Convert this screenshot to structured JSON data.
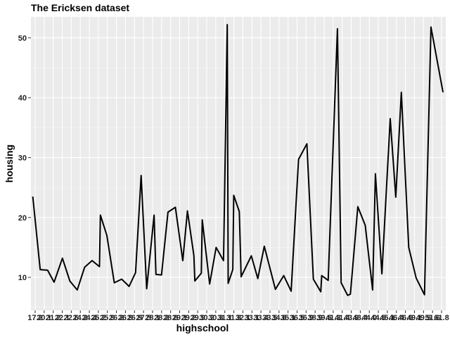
{
  "chart_data": {
    "type": "line",
    "title": "The Ericksen dataset",
    "xlabel": "highschool",
    "ylabel": "housing",
    "xlim": [
      17,
      61.8
    ],
    "ylim": [
      4.5,
      53.5
    ],
    "y_ticks": [
      10,
      20,
      30,
      40,
      50
    ],
    "x_tick_labels": [
      "17.2",
      "20.1",
      "21.2",
      "22.1",
      "22.6",
      "24.2",
      "24.4",
      "25.2",
      "25.9",
      "26.2",
      "26.9",
      "26.9",
      "27.5",
      "28.1",
      "28.2",
      "28.6",
      "29.1",
      "29.2",
      "29.9",
      "30.2",
      "30.3",
      "31.1",
      "31.3",
      "32.1",
      "33.1",
      "33.4",
      "33.5",
      "34.6",
      "35.1",
      "36.5",
      "36.9",
      "38.9",
      "39.5",
      "41.3",
      "41.4",
      "43.9",
      "43.4",
      "44.0",
      "44.5",
      "45.1",
      "46.4",
      "46.6",
      "49.1",
      "49.5",
      "51.6",
      "61.8"
    ],
    "series": [
      {
        "color": "#000000",
        "x": [
          17.2,
          18.0,
          18.8,
          19.5,
          20.4,
          21.2,
          22.0,
          22.8,
          23.6,
          24.4,
          24.5,
          25.2,
          26.0,
          26.8,
          27.6,
          28.3,
          28.9,
          29.5,
          30.3,
          30.5,
          31.1,
          31.8,
          32.6,
          33.4,
          33.9,
          34.6,
          34.7,
          35.4,
          35.5,
          36.3,
          37.0,
          37.8,
          38.2,
          38.3,
          38.8,
          38.9,
          39.5,
          39.7,
          40.8,
          41.5,
          42.2,
          43.4,
          44.3,
          45.1,
          45.9,
          46.8,
          47.5,
          48.3,
          48.4,
          49.1,
          50.1,
          50.5,
          51.2,
          51.5,
          52.3,
          53.1,
          53.9,
          54.2,
          54.9,
          55.8,
          56.4,
          57.0,
          57.8,
          58.6,
          59.5,
          60.2,
          61.5
        ],
        "y": [
          23.5,
          11.3,
          11.2,
          9.2,
          13.2,
          9.4,
          7.9,
          11.7,
          12.8,
          11.8,
          20.4,
          17.0,
          9.1,
          9.7,
          8.5,
          10.8,
          27.0,
          8.1,
          20.4,
          10.5,
          10.4,
          20.9,
          21.7,
          12.8,
          21.1,
          13.6,
          9.4,
          10.7,
          19.6,
          8.9,
          15.0,
          12.8,
          52.2,
          9.0,
          11.3,
          23.7,
          21.0,
          10.1,
          13.6,
          9.8,
          15.2,
          8.0,
          10.3,
          7.7,
          29.7,
          32.3,
          9.7,
          7.6,
          10.3,
          9.5,
          51.5,
          9.1,
          7.0,
          7.2,
          21.8,
          18.7,
          7.9,
          27.3,
          10.6,
          36.5,
          23.4,
          40.9,
          15.0,
          9.9,
          7.1,
          51.8,
          40.9
        ]
      }
    ],
    "grid": true,
    "legend": "none"
  }
}
